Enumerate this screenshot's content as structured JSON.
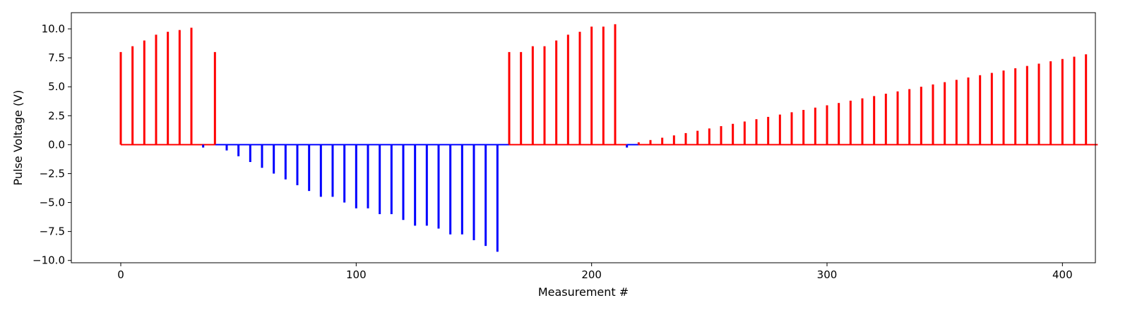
{
  "chart_data": {
    "type": "bar",
    "title": "",
    "xlabel": "Measurement #",
    "ylabel": "Pulse Voltage (V)",
    "xlim": [
      -21,
      414
    ],
    "ylim": [
      -10.2,
      11.4
    ],
    "xticks": [
      0,
      100,
      200,
      300,
      400
    ],
    "yticks": [
      -10.0,
      -7.5,
      -5.0,
      -2.5,
      0.0,
      2.5,
      5.0,
      7.5,
      10.0
    ],
    "xtick_labels": [
      "0",
      "100",
      "200",
      "300",
      "400"
    ],
    "ytick_labels": [
      "−10.0",
      "−7.5",
      "−5.0",
      "−2.5",
      "0.0",
      "2.5",
      "5.0",
      "7.5",
      "10.0"
    ],
    "baseline": {
      "x_start": 0,
      "x_end": 415
    },
    "colors": {
      "positive": "#ff0000",
      "negative": "#0000ff",
      "baseline_positive": "#ff0000",
      "baseline_negative": "#0000ff"
    },
    "baseline_segments": [
      {
        "x_start": 0,
        "x_end": 40,
        "color": "#ff0000"
      },
      {
        "x_start": 40,
        "x_end": 165,
        "color": "#0000ff"
      },
      {
        "x_start": 165,
        "x_end": 215,
        "color": "#ff0000"
      },
      {
        "x_start": 215,
        "x_end": 220,
        "color": "#0000ff"
      },
      {
        "x_start": 220,
        "x_end": 415,
        "color": "#ff0000"
      }
    ],
    "x": [
      0,
      5,
      10,
      15,
      20,
      25,
      30,
      35,
      40,
      45,
      50,
      55,
      60,
      65,
      70,
      75,
      80,
      85,
      90,
      95,
      100,
      105,
      110,
      115,
      120,
      125,
      130,
      135,
      140,
      145,
      150,
      155,
      160,
      165,
      170,
      175,
      180,
      185,
      190,
      195,
      200,
      205,
      210,
      215,
      220,
      225,
      230,
      235,
      240,
      245,
      250,
      255,
      260,
      265,
      270,
      275,
      280,
      285,
      290,
      295,
      300,
      305,
      310,
      315,
      320,
      325,
      330,
      335,
      340,
      345,
      350,
      355,
      360,
      365,
      370,
      375,
      380,
      385,
      390,
      395,
      400,
      405,
      410
    ],
    "values": [
      8.0,
      8.5,
      9.0,
      9.5,
      9.75,
      9.9,
      10.1,
      -0.25,
      8.0,
      -0.5,
      -1.0,
      -1.5,
      -2.0,
      -2.5,
      -3.0,
      -3.5,
      -4.0,
      -4.5,
      -4.5,
      -5.0,
      -5.5,
      -5.5,
      -6.0,
      -6.0,
      -6.5,
      -7.0,
      -7.0,
      -7.25,
      -7.75,
      -7.75,
      -8.25,
      -8.75,
      -9.25,
      8.0,
      8.0,
      8.5,
      8.5,
      9.0,
      9.5,
      9.75,
      10.2,
      10.2,
      10.4,
      -0.25,
      0.2,
      0.4,
      0.6,
      0.8,
      1.0,
      1.2,
      1.4,
      1.6,
      1.8,
      2.0,
      2.2,
      2.4,
      2.6,
      2.8,
      3.0,
      3.2,
      3.4,
      3.6,
      3.8,
      4.0,
      4.2,
      4.4,
      4.6,
      4.8,
      5.0,
      5.2,
      5.4,
      5.6,
      5.8,
      6.0,
      6.2,
      6.4,
      6.6,
      6.8,
      7.0,
      7.2,
      7.4,
      7.6,
      7.8
    ]
  }
}
